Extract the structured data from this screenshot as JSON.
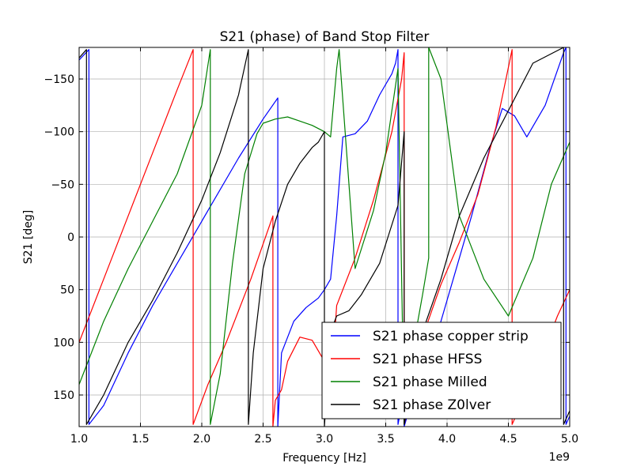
{
  "chart_data": {
    "type": "line",
    "title": "S21 (phase) of Band Stop Filter",
    "xlabel": "Frequency [Hz]",
    "ylabel": "S21 [deg]",
    "x_offset_label": "1e9",
    "xlim": [
      1.0,
      5.0
    ],
    "ylim_display_top_to_bottom": [
      -180,
      180
    ],
    "y_axis_inverted": true,
    "grid": true,
    "legend_position": "lower-right",
    "x_ticks": [
      "1.0",
      "1.5",
      "2.0",
      "2.5",
      "3.0",
      "3.5",
      "4.0",
      "4.5",
      "5.0"
    ],
    "y_ticks": [
      "−150",
      "−100",
      "−50",
      "0",
      "50",
      "100",
      "150"
    ],
    "series": [
      {
        "name": "S21 phase copper strip",
        "color": "#0000ff",
        "x": [
          1.0,
          1.08,
          1.08,
          1.2,
          1.4,
          1.6,
          1.8,
          1.95,
          2.1,
          2.3,
          2.5,
          2.62,
          2.62,
          2.65,
          2.75,
          2.85,
          2.95,
          3.0,
          3.05,
          3.1,
          3.15,
          3.25,
          3.35,
          3.45,
          3.55,
          3.58,
          3.6,
          3.6,
          3.63,
          3.65,
          3.65,
          3.75,
          3.9,
          4.05,
          4.2,
          4.35,
          4.45,
          4.55,
          4.65,
          4.8,
          4.95,
          4.97,
          4.97,
          5.0
        ],
        "y": [
          -168,
          -178,
          178,
          160,
          110,
          65,
          25,
          -5,
          -35,
          -75,
          -112,
          -132,
          180,
          110,
          80,
          67,
          58,
          50,
          40,
          -20,
          -95,
          -98,
          -110,
          -135,
          -155,
          -165,
          -178,
          178,
          160,
          150,
          180,
          140,
          100,
          40,
          -20,
          -85,
          -122,
          -115,
          -95,
          -125,
          -175,
          -180,
          178,
          170
        ]
      },
      {
        "name": "S21 phase HFSS",
        "color": "#ff0000",
        "x": [
          1.0,
          1.2,
          1.4,
          1.6,
          1.8,
          1.93,
          1.93,
          2.05,
          2.2,
          2.4,
          2.58,
          2.58,
          2.6,
          2.65,
          2.7,
          2.8,
          2.9,
          3.0,
          3.05,
          3.1,
          3.25,
          3.4,
          3.55,
          3.63,
          3.65,
          3.65,
          3.8,
          3.95,
          4.1,
          4.25,
          4.4,
          4.53,
          4.53,
          4.6,
          4.75,
          4.9,
          5.0
        ],
        "y": [
          100,
          40,
          -20,
          -80,
          -140,
          -178,
          178,
          140,
          100,
          40,
          -20,
          180,
          155,
          145,
          118,
          95,
          98,
          118,
          150,
          65,
          20,
          -35,
          -100,
          -150,
          -175,
          178,
          95,
          45,
          5,
          -40,
          -105,
          -178,
          178,
          160,
          120,
          75,
          50
        ]
      },
      {
        "name": "S21 phase Milled",
        "color": "#008000",
        "x": [
          1.0,
          1.2,
          1.4,
          1.6,
          1.8,
          2.0,
          2.07,
          2.07,
          2.15,
          2.25,
          2.35,
          2.45,
          2.5,
          2.6,
          2.7,
          2.8,
          2.9,
          3.0,
          3.05,
          3.1,
          3.12,
          3.25,
          3.4,
          3.5,
          3.6,
          3.65,
          3.7,
          3.8,
          3.85,
          3.85,
          3.95,
          4.1,
          4.3,
          4.5,
          4.7,
          4.85,
          5.0
        ],
        "y": [
          140,
          80,
          30,
          -15,
          -60,
          -125,
          -178,
          178,
          130,
          25,
          -60,
          -98,
          -108,
          -112,
          -114,
          -110,
          -106,
          -100,
          -95,
          -160,
          -178,
          30,
          -25,
          -80,
          -160,
          178,
          120,
          55,
          20,
          -180,
          -150,
          -20,
          40,
          75,
          20,
          -50,
          -90
        ]
      },
      {
        "name": "S21 phase Z0lver",
        "color": "#000000",
        "x": [
          1.0,
          1.06,
          1.06,
          1.2,
          1.4,
          1.6,
          1.8,
          2.0,
          2.15,
          2.3,
          2.38,
          2.38,
          2.42,
          2.5,
          2.6,
          2.7,
          2.8,
          2.9,
          2.95,
          3.0,
          3.0,
          3.05,
          3.1,
          3.2,
          3.3,
          3.45,
          3.6,
          3.65,
          3.65,
          3.8,
          3.95,
          4.1,
          4.3,
          4.5,
          4.7,
          4.95,
          4.95,
          5.0
        ],
        "y": [
          -170,
          -178,
          178,
          150,
          100,
          60,
          15,
          -35,
          -80,
          -135,
          -178,
          178,
          110,
          30,
          -15,
          -50,
          -70,
          -85,
          -90,
          -100,
          180,
          90,
          75,
          70,
          55,
          25,
          -30,
          -100,
          178,
          90,
          40,
          -20,
          -75,
          -120,
          -165,
          -180,
          178,
          165
        ]
      }
    ]
  }
}
